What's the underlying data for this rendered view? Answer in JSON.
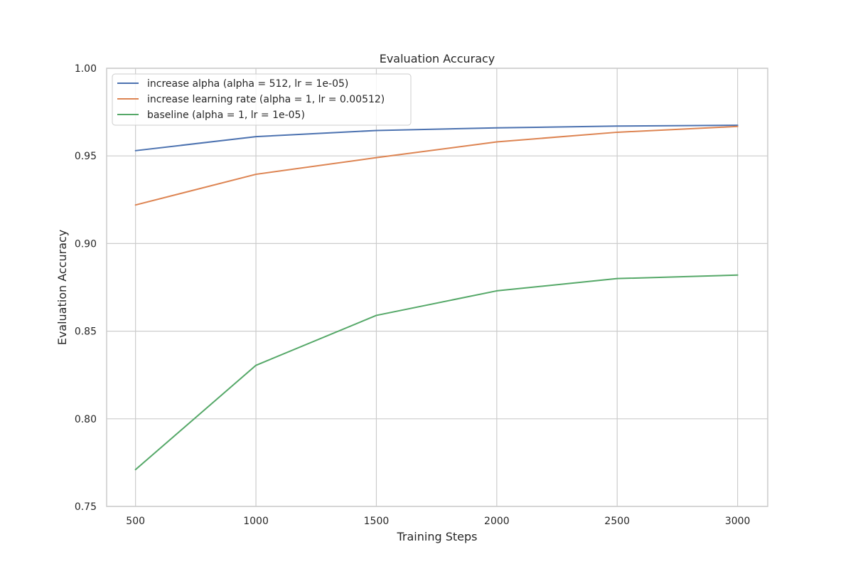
{
  "chart_data": {
    "type": "line",
    "title": "Evaluation Accuracy",
    "xlabel": "Training Steps",
    "ylabel": "Evaluation Accuracy",
    "x": [
      500,
      1000,
      1500,
      2000,
      2500,
      3000
    ],
    "xticks": [
      "500",
      "1000",
      "1500",
      "2000",
      "2500",
      "3000"
    ],
    "yticks": [
      "0.75",
      "0.80",
      "0.85",
      "0.90",
      "0.95",
      "1.00"
    ],
    "ytick_values": [
      0.75,
      0.8,
      0.85,
      0.9,
      0.95,
      1.0
    ],
    "xlim": [
      380,
      3125
    ],
    "ylim": [
      0.75,
      1.0
    ],
    "grid": true,
    "legend_position": "top-left",
    "series": [
      {
        "name": "increase alpha (alpha = 512, lr = 1e-05)",
        "color": "#4c72b0",
        "values": [
          0.953,
          0.961,
          0.9645,
          0.966,
          0.967,
          0.9675
        ]
      },
      {
        "name": "increase learning rate (alpha = 1, lr = 0.00512)",
        "color": "#dd8452",
        "values": [
          0.922,
          0.9395,
          0.949,
          0.958,
          0.9635,
          0.9668
        ]
      },
      {
        "name": "baseline (alpha = 1, lr = 1e-05)",
        "color": "#55a868",
        "values": [
          0.771,
          0.8305,
          0.859,
          0.873,
          0.88,
          0.882
        ]
      }
    ]
  }
}
